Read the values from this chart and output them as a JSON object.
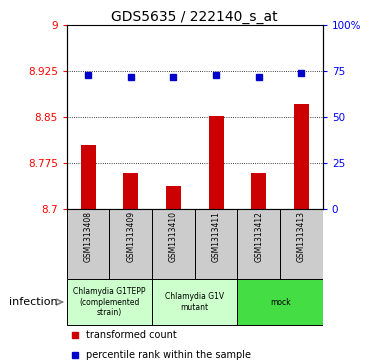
{
  "title": "GDS5635 / 222140_s_at",
  "samples": [
    "GSM1313408",
    "GSM1313409",
    "GSM1313410",
    "GSM1313411",
    "GSM1313412",
    "GSM1313413"
  ],
  "transformed_counts": [
    8.805,
    8.758,
    8.738,
    8.852,
    8.758,
    8.872
  ],
  "percentile_ranks": [
    73,
    72,
    72,
    73,
    72,
    74
  ],
  "y_min": 8.7,
  "y_max": 9.0,
  "y_ticks": [
    8.7,
    8.775,
    8.85,
    8.925,
    9.0
  ],
  "y_tick_labels": [
    "8.7",
    "8.775",
    "8.85",
    "8.925",
    "9"
  ],
  "y2_ticks": [
    0,
    25,
    50,
    75,
    100
  ],
  "y2_tick_labels": [
    "0",
    "25",
    "50",
    "75",
    "100%"
  ],
  "bar_color": "#cc0000",
  "dot_color": "#0000cc",
  "groups": [
    {
      "label": "Chlamydia G1TEPP\n(complemented\nstrain)",
      "start": 0,
      "end": 2,
      "color": "#ccffcc"
    },
    {
      "label": "Chlamydia G1V\nmutant",
      "start": 2,
      "end": 4,
      "color": "#ccffcc"
    },
    {
      "label": "mock",
      "start": 4,
      "end": 6,
      "color": "#44dd44"
    }
  ],
  "legend_items": [
    {
      "color": "#cc0000",
      "label": "transformed count"
    },
    {
      "color": "#0000cc",
      "label": "percentile rank within the sample"
    }
  ],
  "sample_bg_color": "#cccccc",
  "bar_width": 0.35
}
